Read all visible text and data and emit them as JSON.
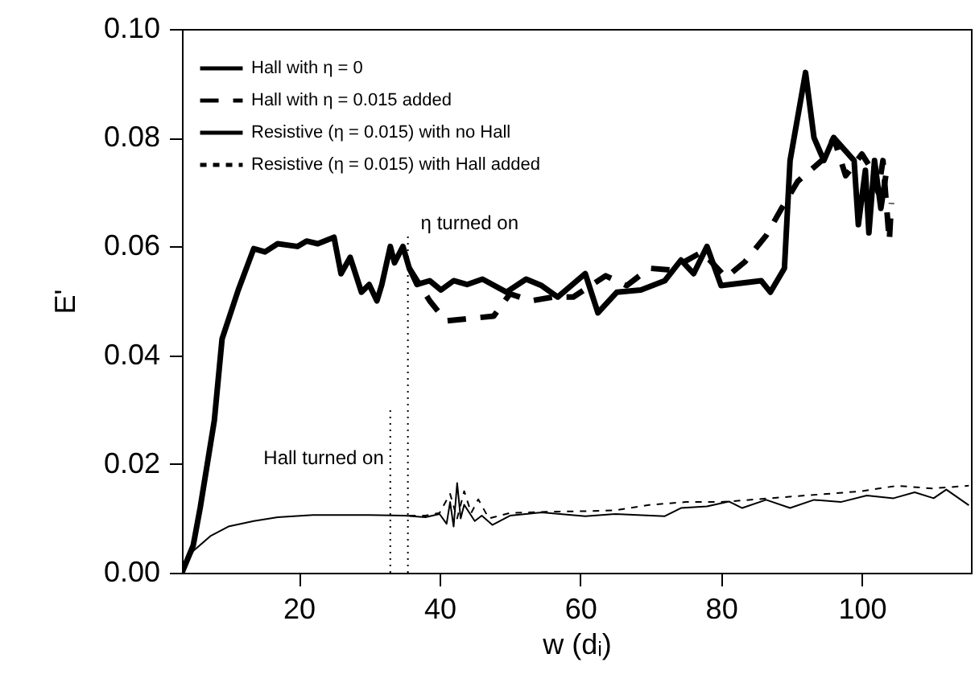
{
  "chart_data": {
    "type": "line",
    "xlabel": "w (dᵢ)",
    "ylabel": "E'",
    "xlim": [
      3.4,
      115.5
    ],
    "xticks": [
      20,
      40,
      60,
      80,
      100
    ],
    "ylim": [
      0,
      0.1
    ],
    "yticks": [
      {
        "value": 0,
        "label": "0.00"
      },
      0.02,
      0.04,
      0.06,
      0.08,
      {
        "value": 0.1,
        "label": "0.10"
      }
    ],
    "grid": false,
    "legend": "top left",
    "marker": "none",
    "series": [
      {
        "name": "Hall with η = 0",
        "color": "#000000",
        "line_style": "solid",
        "x": [
          3.4,
          5,
          6,
          8,
          9.1,
          11.4,
          13.6,
          15.2,
          17,
          19.8,
          21.1,
          22.7,
          25,
          26,
          27.3,
          28.9,
          30,
          31.1,
          31.8,
          33,
          33.6,
          34.8,
          35.7,
          36.8,
          38.6,
          40.2,
          42,
          43.9,
          46.1,
          49.5,
          52.3,
          54.5,
          56.8,
          60.7,
          62.5,
          65.2,
          68.6,
          72,
          74.3,
          76.1,
          78,
          80,
          85.7,
          87,
          89,
          89.8,
          92,
          93.2,
          94.6,
          96,
          98.9,
          99.5,
          100.5,
          101,
          101.8,
          102.7,
          103.4
        ],
        "values": [
          0,
          0.005,
          0.012,
          0.028,
          0.043,
          0.052,
          0.0596,
          0.059,
          0.0605,
          0.06,
          0.061,
          0.0605,
          0.0617,
          0.055,
          0.058,
          0.0516,
          0.053,
          0.05,
          0.053,
          0.06,
          0.057,
          0.06,
          0.056,
          0.053,
          0.0537,
          0.052,
          0.0537,
          0.053,
          0.054,
          0.0516,
          0.054,
          0.0528,
          0.0507,
          0.055,
          0.0478,
          0.0516,
          0.052,
          0.0537,
          0.0575,
          0.055,
          0.06,
          0.0528,
          0.0537,
          0.0516,
          0.056,
          0.0758,
          0.092,
          0.08,
          0.0758,
          0.08,
          0.0758,
          0.064,
          0.074,
          0.0625,
          0.0758,
          0.067,
          0.073
        ]
      },
      {
        "name": "Hall with η = 0.015 added",
        "color": "#000000",
        "line_style": "dashed",
        "x": [
          35.7,
          38.6,
          40.9,
          47.7,
          50,
          53,
          56.1,
          59,
          63.6,
          66.6,
          69.8,
          72.7,
          77.3,
          80.7,
          83.4,
          86.4,
          88.6,
          90.9,
          94.3,
          96,
          97.7,
          100,
          101,
          102.3,
          103,
          103.9,
          104.2
        ],
        "values": [
          0.056,
          0.05,
          0.0463,
          0.0472,
          0.0513,
          0.05,
          0.0507,
          0.0507,
          0.0546,
          0.0528,
          0.056,
          0.0557,
          0.059,
          0.0543,
          0.0572,
          0.062,
          0.067,
          0.072,
          0.0758,
          0.08,
          0.073,
          0.077,
          0.075,
          0.07,
          0.0758,
          0.061,
          0.068
        ]
      },
      {
        "name": "Resistive (η = 0.015) with no Hall",
        "color": "#000000",
        "line_style": "solid",
        "x": [
          3.4,
          5,
          7.5,
          10,
          13.6,
          17,
          22,
          30,
          35,
          38,
          40,
          41,
          41.5,
          42,
          42.5,
          43,
          43.5,
          45,
          46,
          47.5,
          50,
          54.5,
          60.7,
          65,
          72,
          74.3,
          78,
          81.1,
          83,
          86.4,
          89.8,
          93.2,
          97,
          100.7,
          104.5,
          107.5,
          110.2,
          112,
          115.2
        ],
        "values": [
          0,
          0.004,
          0.0068,
          0.0085,
          0.0095,
          0.0102,
          0.0106,
          0.0106,
          0.0105,
          0.0102,
          0.0108,
          0.009,
          0.013,
          0.0085,
          0.0165,
          0.01,
          0.0125,
          0.0095,
          0.0105,
          0.0088,
          0.0105,
          0.0111,
          0.0104,
          0.0108,
          0.0104,
          0.0119,
          0.0122,
          0.0131,
          0.0119,
          0.0134,
          0.0119,
          0.0134,
          0.013,
          0.0142,
          0.0137,
          0.0148,
          0.0137,
          0.0153,
          0.0124
        ]
      },
      {
        "name": "Resistive (η = 0.015) with Hall added",
        "color": "#000000",
        "line_style": "dashed",
        "x": [
          35.7,
          38,
          40,
          41.5,
          42.5,
          43.5,
          44.5,
          45.5,
          47,
          50,
          55,
          60,
          65,
          70,
          75,
          80,
          85,
          90,
          95,
          100,
          105,
          110,
          115.2
        ],
        "values": [
          0.0105,
          0.0105,
          0.011,
          0.0145,
          0.01,
          0.015,
          0.011,
          0.0135,
          0.01,
          0.011,
          0.0112,
          0.0113,
          0.0115,
          0.0125,
          0.013,
          0.013,
          0.0135,
          0.014,
          0.0145,
          0.015,
          0.016,
          0.0155,
          0.016
        ]
      }
    ],
    "ref_lines": [
      {
        "axis": "x",
        "value": 33.0,
        "label": "Hall turned on",
        "line_style": "dotted"
      },
      {
        "axis": "x",
        "value": 35.5,
        "label": "η turned on",
        "line_style": "dotted"
      }
    ]
  }
}
